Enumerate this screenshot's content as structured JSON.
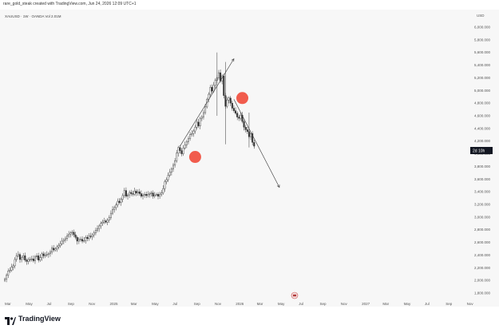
{
  "header": {
    "text": "rare_gold_steak created with TradingView.com, Jun 24, 2026 12:09 UTC+1"
  },
  "symbol": {
    "text": "XAUUSD · 1W · OANDA  Vol 2.01M"
  },
  "footer": {
    "brand": "TradingView"
  },
  "price_label": {
    "text": "2d 10h"
  },
  "currency": "USD",
  "colors": {
    "bull": "#ffffff",
    "bear": "#333333",
    "wick": "#333333",
    "marker": "#f04a3a",
    "annotation": "#333333"
  },
  "chart_data": {
    "type": "candlestick",
    "y_axis": {
      "unit": "USD",
      "ticks": [
        "6,000.000",
        "5,800.000",
        "5,600.000",
        "5,400.000",
        "5,200.000",
        "5,000.000",
        "4,800.000",
        "4,600.000",
        "4,400.000",
        "4,200.000",
        "4,000.000",
        "3,800.000",
        "3,600.000",
        "3,400.000",
        "3,200.000",
        "3,000.000",
        "2,800.000",
        "2,600.000",
        "2,400.000",
        "2,200.000",
        "2,000.000",
        "1,800.000"
      ],
      "range": [
        1750,
        6100
      ]
    },
    "x_axis": {
      "ticks": [
        "Mar",
        "May",
        "Jul",
        "Sep",
        "Nov",
        "2025",
        "Mar",
        "May",
        "Jul",
        "Sep",
        "Nov",
        "2026",
        "Mar",
        "May",
        "Jul",
        "Sep",
        "Nov",
        "2027",
        "Mar",
        "May",
        "Jul",
        "Sep",
        "Nov"
      ]
    },
    "last_price_label": "2d 10h",
    "series_close": [
      2020,
      2080,
      2150,
      2160,
      2210,
      2230,
      2330,
      2390,
      2410,
      2330,
      2360,
      2390,
      2320,
      2300,
      2330,
      2330,
      2340,
      2310,
      2370,
      2390,
      2320,
      2360,
      2420,
      2390,
      2400,
      2410,
      2420,
      2450,
      2510,
      2480,
      2500,
      2530,
      2550,
      2580,
      2620,
      2640,
      2660,
      2700,
      2730,
      2750,
      2760,
      2720,
      2680,
      2620,
      2650,
      2650,
      2620,
      2630,
      2680,
      2660,
      2700,
      2690,
      2720,
      2750,
      2790,
      2820,
      2860,
      2900,
      2920,
      2940,
      2920,
      2950,
      2990,
      3060,
      3120,
      3150,
      3190,
      3250,
      3230,
      3280,
      3340,
      3420,
      3330,
      3350,
      3390,
      3370,
      3360,
      3410,
      3380,
      3400,
      3370,
      3330,
      3350,
      3360,
      3340,
      3360,
      3370,
      3380,
      3330,
      3350,
      3360,
      3330,
      3360,
      3380,
      3450,
      3560,
      3590,
      3660,
      3710,
      3760,
      3820,
      3890,
      4010,
      4100,
      4050,
      4000,
      4090,
      4140,
      4190,
      4240,
      4300,
      4320,
      4360,
      4420,
      4500,
      4440,
      4560,
      4580,
      4650,
      4740,
      4860,
      4940,
      5050,
      4990,
      5080,
      5160,
      5200,
      5280,
      5150,
      5230,
      4920,
      4750,
      4850,
      4880,
      4800,
      4720,
      4680,
      4640,
      4580,
      4560,
      4610,
      4510,
      4420,
      4380,
      4350,
      4270,
      4320,
      4180,
      4120
    ],
    "annotations": [
      {
        "type": "trend_line",
        "from": {
          "index": 104,
          "price": 4120
        },
        "to": {
          "index": 136,
          "price": 5500
        }
      },
      {
        "type": "trend_line",
        "from": {
          "index": 136,
          "price": 4860
        },
        "to": {
          "index": 163,
          "price": 3470
        }
      },
      {
        "type": "marker",
        "index": 113,
        "price": 3950
      },
      {
        "type": "marker",
        "index": 141,
        "price": 4880
      }
    ]
  }
}
